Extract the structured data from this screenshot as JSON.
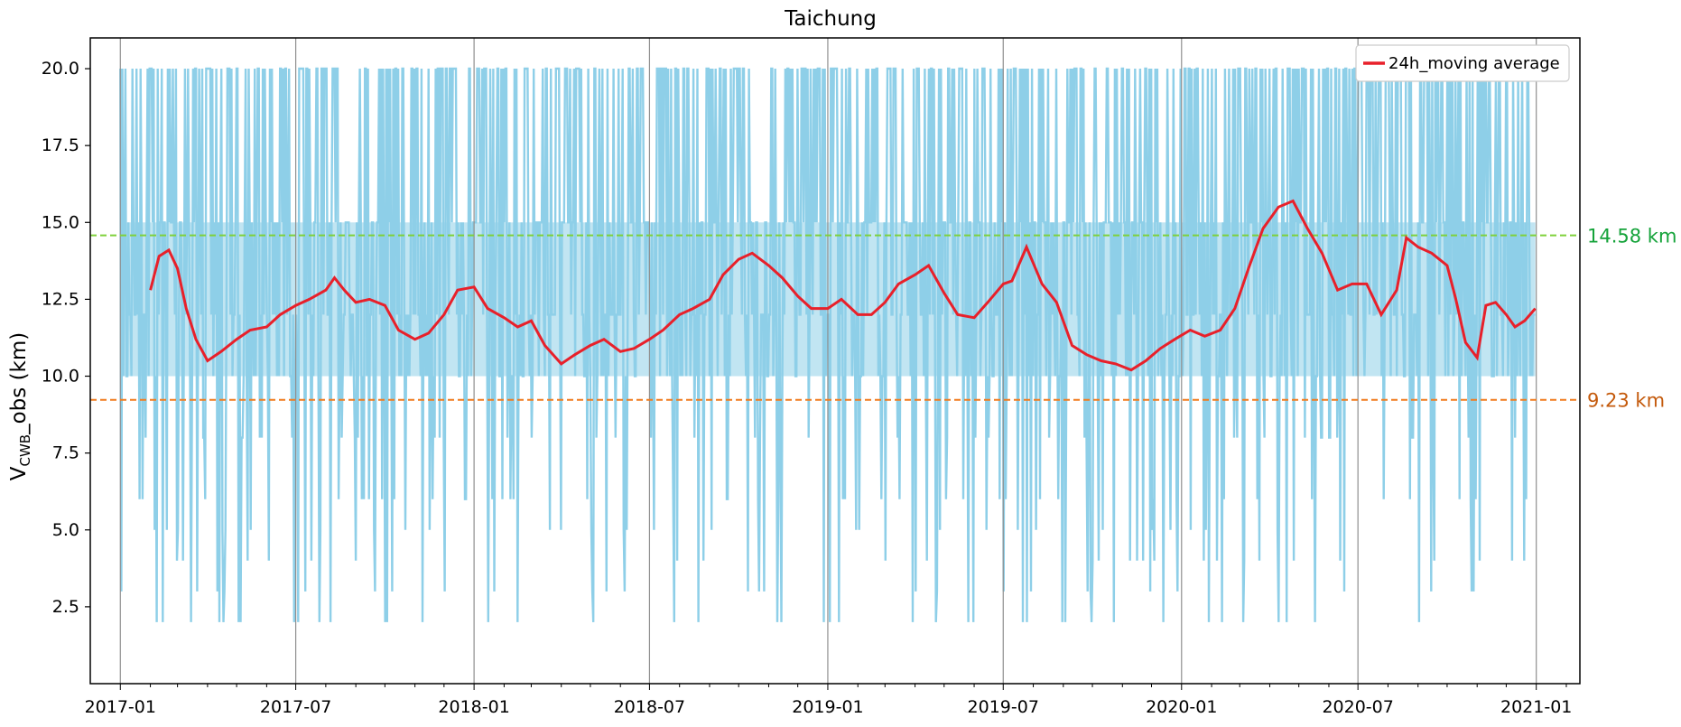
{
  "chart_data": {
    "type": "line",
    "title": "Taichung",
    "ylabel_main": "V",
    "ylabel_sub": "CWB",
    "ylabel_rest": "_obs (km)",
    "ylim": [
      0,
      21
    ],
    "xlim": [
      "2016-12-01",
      "2021-02-15"
    ],
    "yticks": [
      2.5,
      5.0,
      7.5,
      10.0,
      12.5,
      15.0,
      17.5,
      20.0
    ],
    "ytick_labels": [
      "2.5",
      "5.0",
      "7.5",
      "10.0",
      "12.5",
      "15.0",
      "17.5",
      "20.0"
    ],
    "xticks": [
      "2017-01-01",
      "2017-07-01",
      "2018-01-01",
      "2018-07-01",
      "2019-01-01",
      "2019-07-01",
      "2020-01-01",
      "2020-07-01",
      "2021-01-01"
    ],
    "xtick_labels": [
      "2017-01",
      "2017-07",
      "2018-01",
      "2018-07",
      "2019-01",
      "2019-07",
      "2020-01",
      "2020-07",
      "2021-01"
    ],
    "grid": "vertical",
    "legend_position": "top-right",
    "reference_lines": [
      {
        "value": 14.58,
        "label": "14.58 km",
        "color": "#7fd13b",
        "label_color": "#15a33a"
      },
      {
        "value": 9.23,
        "label": "9.23 km",
        "color": "#f07b1e",
        "label_color": "#c45a0c"
      }
    ],
    "series": [
      {
        "name": "",
        "style": "raw observations",
        "color": "#8ecfe8",
        "levels": [
          2,
          3,
          4,
          5,
          6,
          8,
          10,
          12,
          15,
          20
        ],
        "typical_band": [
          10,
          15
        ],
        "x_start": "2017-01-01",
        "x_end": "2020-12-31"
      },
      {
        "name": "24h_moving average",
        "color": "#e8202a",
        "points": [
          [
            "2017-02-01",
            12.8
          ],
          [
            "2017-02-10",
            13.9
          ],
          [
            "2017-02-20",
            14.1
          ],
          [
            "2017-03-01",
            13.5
          ],
          [
            "2017-03-10",
            12.2
          ],
          [
            "2017-03-20",
            11.2
          ],
          [
            "2017-04-01",
            10.5
          ],
          [
            "2017-04-15",
            10.8
          ],
          [
            "2017-05-01",
            11.2
          ],
          [
            "2017-05-15",
            11.5
          ],
          [
            "2017-06-01",
            11.6
          ],
          [
            "2017-06-15",
            12.0
          ],
          [
            "2017-07-01",
            12.3
          ],
          [
            "2017-07-15",
            12.5
          ],
          [
            "2017-08-01",
            12.8
          ],
          [
            "2017-08-10",
            13.2
          ],
          [
            "2017-08-20",
            12.8
          ],
          [
            "2017-09-01",
            12.4
          ],
          [
            "2017-09-15",
            12.5
          ],
          [
            "2017-10-01",
            12.3
          ],
          [
            "2017-10-15",
            11.5
          ],
          [
            "2017-11-01",
            11.2
          ],
          [
            "2017-11-15",
            11.4
          ],
          [
            "2017-12-01",
            12.0
          ],
          [
            "2017-12-15",
            12.8
          ],
          [
            "2018-01-01",
            12.9
          ],
          [
            "2018-01-15",
            12.2
          ],
          [
            "2018-02-01",
            11.9
          ],
          [
            "2018-02-15",
            11.6
          ],
          [
            "2018-03-01",
            11.8
          ],
          [
            "2018-03-15",
            11.0
          ],
          [
            "2018-04-01",
            10.4
          ],
          [
            "2018-04-15",
            10.7
          ],
          [
            "2018-05-01",
            11.0
          ],
          [
            "2018-05-15",
            11.2
          ],
          [
            "2018-06-01",
            10.8
          ],
          [
            "2018-06-15",
            10.9
          ],
          [
            "2018-07-01",
            11.2
          ],
          [
            "2018-07-15",
            11.5
          ],
          [
            "2018-08-01",
            12.0
          ],
          [
            "2018-08-15",
            12.2
          ],
          [
            "2018-09-01",
            12.5
          ],
          [
            "2018-09-15",
            13.3
          ],
          [
            "2018-10-01",
            13.8
          ],
          [
            "2018-10-15",
            14.0
          ],
          [
            "2018-11-01",
            13.6
          ],
          [
            "2018-11-15",
            13.2
          ],
          [
            "2018-12-01",
            12.6
          ],
          [
            "2018-12-15",
            12.2
          ],
          [
            "2019-01-01",
            12.2
          ],
          [
            "2019-01-15",
            12.5
          ],
          [
            "2019-02-01",
            12.0
          ],
          [
            "2019-02-15",
            12.0
          ],
          [
            "2019-03-01",
            12.4
          ],
          [
            "2019-03-15",
            13.0
          ],
          [
            "2019-04-01",
            13.3
          ],
          [
            "2019-04-15",
            13.6
          ],
          [
            "2019-05-01",
            12.7
          ],
          [
            "2019-05-15",
            12.0
          ],
          [
            "2019-06-01",
            11.9
          ],
          [
            "2019-06-15",
            12.4
          ],
          [
            "2019-07-01",
            13.0
          ],
          [
            "2019-07-10",
            13.1
          ],
          [
            "2019-07-25",
            14.2
          ],
          [
            "2019-08-10",
            13.0
          ],
          [
            "2019-08-25",
            12.4
          ],
          [
            "2019-09-10",
            11.0
          ],
          [
            "2019-09-25",
            10.7
          ],
          [
            "2019-10-10",
            10.5
          ],
          [
            "2019-10-25",
            10.4
          ],
          [
            "2019-11-10",
            10.2
          ],
          [
            "2019-11-25",
            10.5
          ],
          [
            "2019-12-10",
            10.9
          ],
          [
            "2019-12-25",
            11.2
          ],
          [
            "2020-01-10",
            11.5
          ],
          [
            "2020-01-25",
            11.3
          ],
          [
            "2020-02-10",
            11.5
          ],
          [
            "2020-02-25",
            12.2
          ],
          [
            "2020-03-10",
            13.5
          ],
          [
            "2020-03-25",
            14.8
          ],
          [
            "2020-04-10",
            15.5
          ],
          [
            "2020-04-25",
            15.7
          ],
          [
            "2020-05-10",
            14.8
          ],
          [
            "2020-05-25",
            14.0
          ],
          [
            "2020-06-10",
            12.8
          ],
          [
            "2020-06-25",
            13.0
          ],
          [
            "2020-07-10",
            13.0
          ],
          [
            "2020-07-25",
            12.0
          ],
          [
            "2020-08-10",
            12.8
          ],
          [
            "2020-08-20",
            14.5
          ],
          [
            "2020-09-01",
            14.2
          ],
          [
            "2020-09-15",
            14.0
          ],
          [
            "2020-10-01",
            13.6
          ],
          [
            "2020-10-10",
            12.5
          ],
          [
            "2020-10-20",
            11.1
          ],
          [
            "2020-11-01",
            10.6
          ],
          [
            "2020-11-10",
            12.3
          ],
          [
            "2020-11-20",
            12.4
          ],
          [
            "2020-12-01",
            12.0
          ],
          [
            "2020-12-10",
            11.6
          ],
          [
            "2020-12-20",
            11.8
          ],
          [
            "2020-12-31",
            12.2
          ]
        ]
      }
    ]
  }
}
